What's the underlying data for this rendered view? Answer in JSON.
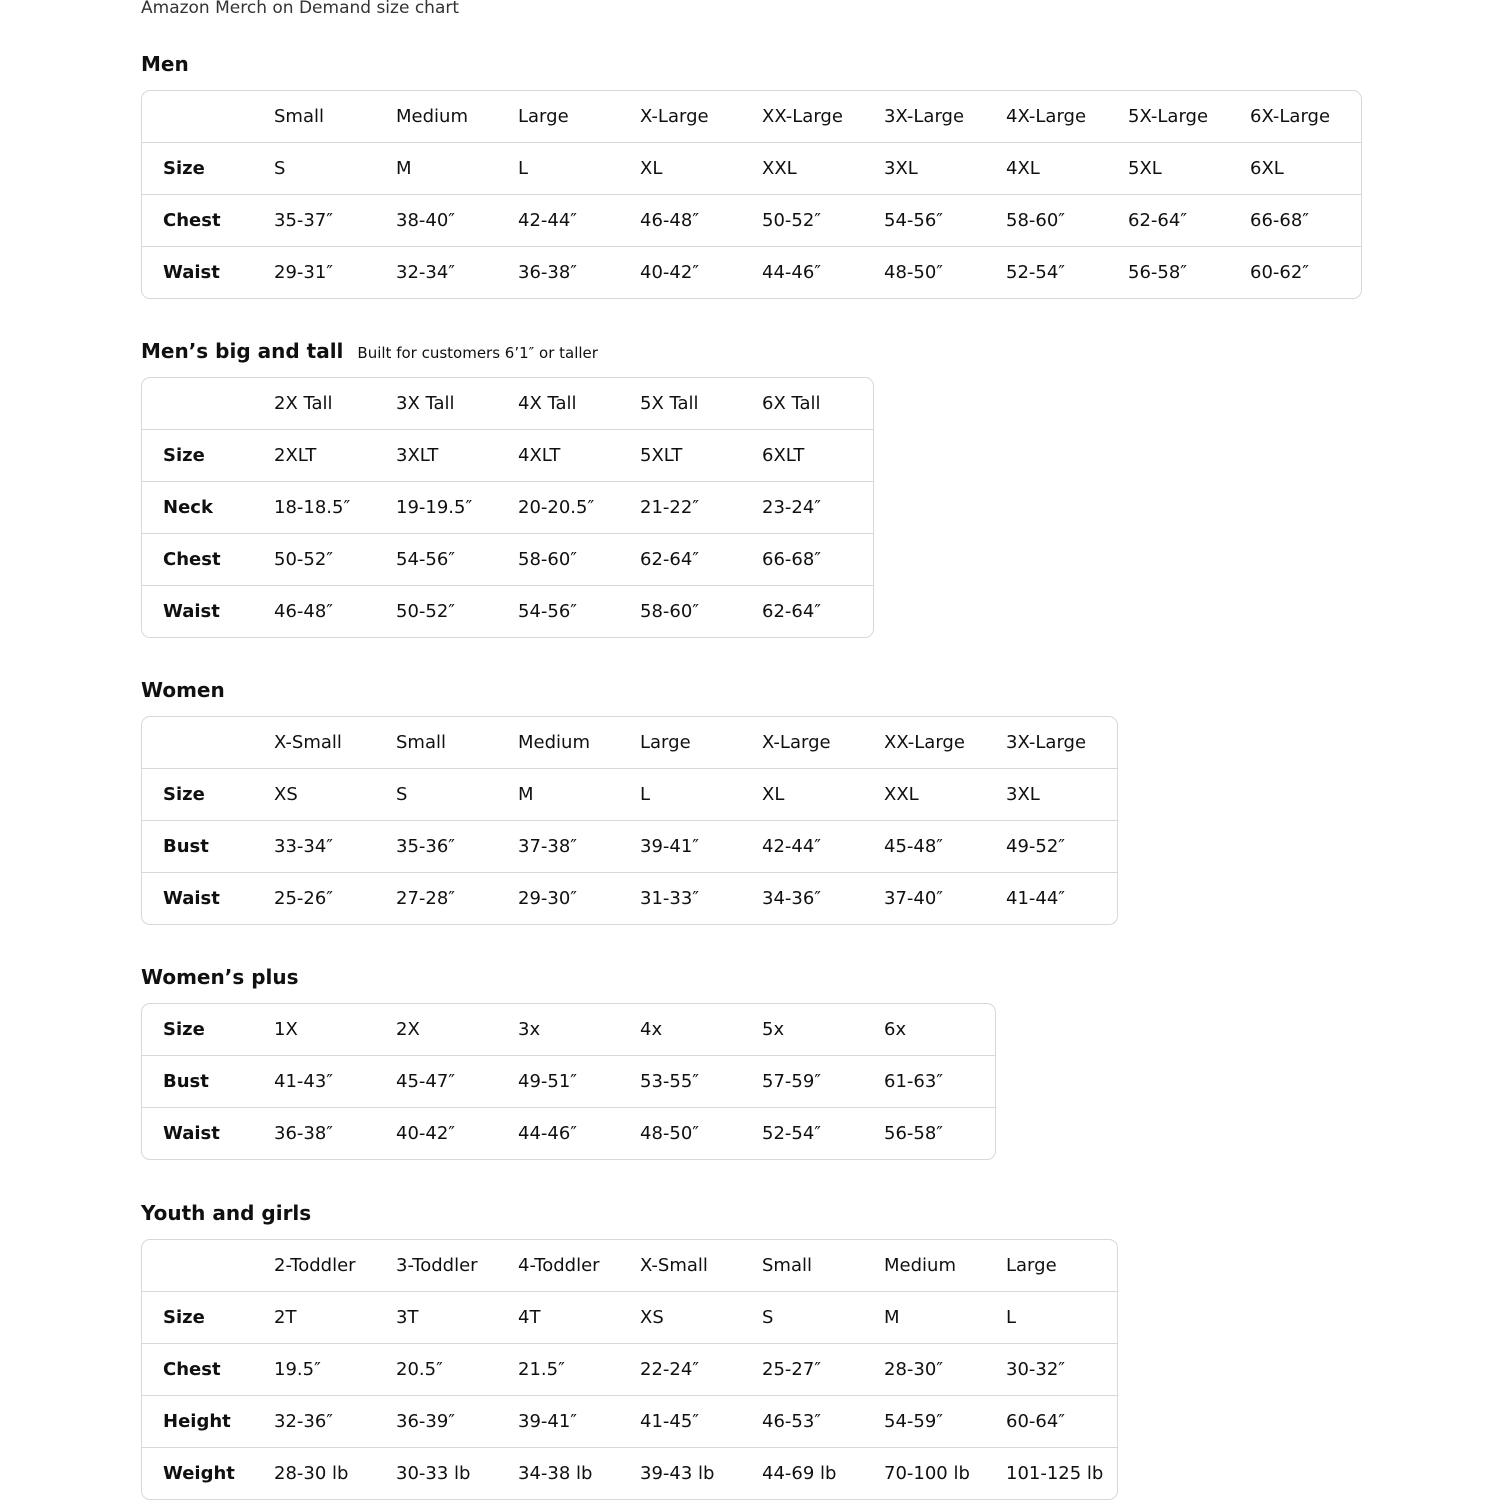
{
  "page_title": "Amazon Merch on Demand size chart",
  "sections": [
    {
      "title": "Men",
      "subtitle": "",
      "header": [
        "",
        "Small",
        "Medium",
        "Large",
        "X-Large",
        "XX-Large",
        "3X-Large",
        "4X-Large",
        "5X-Large",
        "6X-Large"
      ],
      "rows": [
        [
          "Size",
          "S",
          "M",
          "L",
          "XL",
          "XXL",
          "3XL",
          "4XL",
          "5XL",
          "6XL"
        ],
        [
          "Chest",
          "35-37″",
          "38-40″",
          "42-44″",
          "46-48″",
          "50-52″",
          "54-56″",
          "58-60″",
          "62-64″",
          "66-68″"
        ],
        [
          "Waist",
          "29-31″",
          "32-34″",
          "36-38″",
          "40-42″",
          "44-46″",
          "48-50″",
          "52-54″",
          "56-58″",
          "60-62″"
        ]
      ]
    },
    {
      "title": "Men’s big and tall",
      "subtitle": "Built for customers 6’1″ or taller",
      "header": [
        "",
        "2X Tall",
        "3X Tall",
        "4X Tall",
        "5X Tall",
        "6X Tall"
      ],
      "rows": [
        [
          "Size",
          "2XLT",
          "3XLT",
          "4XLT",
          "5XLT",
          "6XLT"
        ],
        [
          "Neck",
          "18-18.5″",
          "19-19.5″",
          "20-20.5″",
          "21-22″",
          "23-24″"
        ],
        [
          "Chest",
          "50-52″",
          "54-56″",
          "58-60″",
          "62-64″",
          "66-68″"
        ],
        [
          "Waist",
          "46-48″",
          "50-52″",
          "54-56″",
          "58-60″",
          "62-64″"
        ]
      ]
    },
    {
      "title": "Women",
      "subtitle": "",
      "header": [
        "",
        "X-Small",
        "Small",
        "Medium",
        "Large",
        "X-Large",
        "XX-Large",
        "3X-Large"
      ],
      "rows": [
        [
          "Size",
          "XS",
          "S",
          "M",
          "L",
          "XL",
          "XXL",
          "3XL"
        ],
        [
          "Bust",
          "33-34″",
          "35-36″",
          "37-38″",
          "39-41″",
          "42-44″",
          "45-48″",
          "49-52″"
        ],
        [
          "Waist",
          "25-26″",
          "27-28″",
          "29-30″",
          "31-33″",
          "34-36″",
          "37-40″",
          "41-44″"
        ]
      ]
    },
    {
      "title": "Women’s plus",
      "subtitle": "",
      "header": null,
      "rows": [
        [
          "Size",
          "1X",
          "2X",
          "3x",
          "4x",
          "5x",
          "6x"
        ],
        [
          "Bust",
          "41-43″",
          "45-47″",
          "49-51″",
          "53-55″",
          "57-59″",
          "61-63″"
        ],
        [
          "Waist",
          "36-38″",
          "40-42″",
          "44-46″",
          "48-50″",
          "52-54″",
          "56-58″"
        ]
      ]
    },
    {
      "title": "Youth and girls",
      "subtitle": "",
      "header": [
        "",
        "2-Toddler",
        "3-Toddler",
        "4-Toddler",
        "X-Small",
        "Small",
        "Medium",
        "Large"
      ],
      "rows": [
        [
          "Size",
          "2T",
          "3T",
          "4T",
          "XS",
          "S",
          "M",
          "L"
        ],
        [
          "Chest",
          "19.5″",
          "20.5″",
          "21.5″",
          "22-24″",
          "25-27″",
          "28-30″",
          "30-32″"
        ],
        [
          "Height",
          "32-36″",
          "36-39″",
          "39-41″",
          "41-45″",
          "46-53″",
          "54-59″",
          "60-64″"
        ],
        [
          "Weight",
          "28-30 lb",
          "30-33 lb",
          "34-38 lb",
          "39-43 lb",
          "44-69 lb",
          "70-100 lb",
          "101-125 lb"
        ]
      ]
    }
  ]
}
